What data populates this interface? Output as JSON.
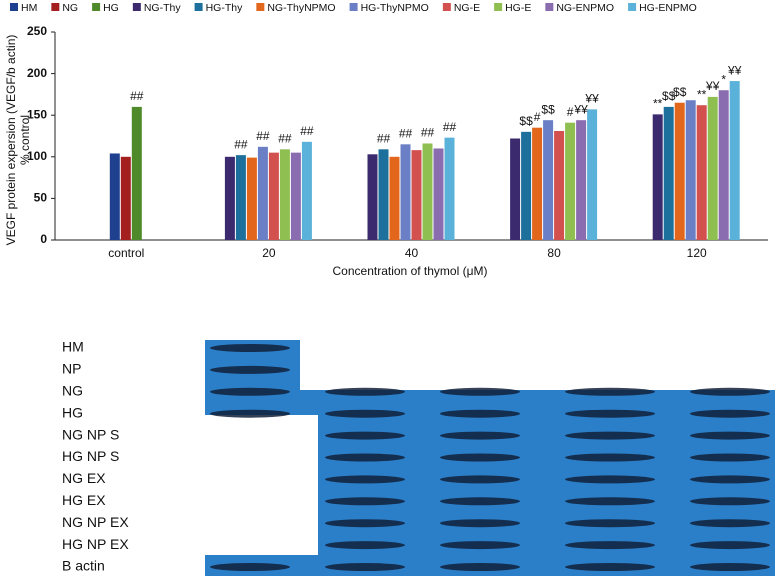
{
  "chart_data": {
    "type": "bar",
    "ylabel": "VEGF protein expersion (VEGF/b actin)",
    "ylabel2": "% control",
    "xlabel": "Concentration of thymol (μM)",
    "categories": [
      "control",
      "20",
      "40",
      "80",
      "120"
    ],
    "series": [
      {
        "name": "HM",
        "color": "#1f3f8f",
        "values": [
          104,
          null,
          null,
          null,
          null
        ]
      },
      {
        "name": "NG",
        "color": "#a3201f",
        "values": [
          100,
          null,
          null,
          null,
          null
        ]
      },
      {
        "name": "HG",
        "color": "#4e8a2a",
        "values": [
          160,
          null,
          null,
          null,
          null
        ]
      },
      {
        "name": "NG-Thy",
        "color": "#3b2b6e",
        "values": [
          null,
          100,
          103,
          122,
          151
        ]
      },
      {
        "name": "HG-Thy",
        "color": "#1d6f9c",
        "values": [
          null,
          102,
          109,
          130,
          160
        ]
      },
      {
        "name": "NG-ThyNPMO",
        "color": "#e2671c",
        "values": [
          null,
          99,
          100,
          135,
          165
        ]
      },
      {
        "name": "HG-ThyNPMO",
        "color": "#6a7fc6",
        "values": [
          null,
          112,
          115,
          144,
          168
        ]
      },
      {
        "name": "NG-E",
        "color": "#d2504e",
        "values": [
          null,
          105,
          108,
          131,
          162
        ]
      },
      {
        "name": "HG-E",
        "color": "#8fbf50",
        "values": [
          null,
          109,
          116,
          141,
          172
        ]
      },
      {
        "name": "NG-ENPMO",
        "color": "#8a6db0",
        "values": [
          null,
          105,
          110,
          144,
          180
        ]
      },
      {
        "name": "HG-ENPMO",
        "color": "#5ab1d9",
        "values": [
          null,
          118,
          123,
          157,
          191
        ]
      }
    ],
    "ylim": [
      0,
      250
    ],
    "yticks": [
      0,
      50,
      100,
      150,
      200,
      250
    ],
    "annotations": [
      {
        "text": "##",
        "category": "control",
        "series": "HG"
      },
      {
        "text": "##",
        "category": "20",
        "series": "HG-Thy"
      },
      {
        "text": "##",
        "category": "20",
        "series": "HG-ThyNPMO"
      },
      {
        "text": "##",
        "category": "20",
        "series": "HG-E"
      },
      {
        "text": "##",
        "category": "20",
        "series": "HG-ENPMO"
      },
      {
        "text": "##",
        "category": "40",
        "series": "HG-Thy"
      },
      {
        "text": "##",
        "category": "40",
        "series": "HG-ThyNPMO"
      },
      {
        "text": "##",
        "category": "40",
        "series": "HG-E"
      },
      {
        "text": "##",
        "category": "40",
        "series": "HG-ENPMO"
      },
      {
        "text": "$$",
        "category": "80",
        "series": "HG-Thy"
      },
      {
        "text": "#",
        "category": "80",
        "series": "NG-ThyNPMO"
      },
      {
        "text": "$$",
        "category": "80",
        "series": "HG-ThyNPMO"
      },
      {
        "text": "#",
        "category": "80",
        "series": "HG-E"
      },
      {
        "text": "¥¥",
        "category": "80",
        "series": "NG-ENPMO"
      },
      {
        "text": "¥¥",
        "category": "80",
        "series": "HG-ENPMO"
      },
      {
        "text": "**",
        "category": "120",
        "series": "NG-Thy"
      },
      {
        "text": "$$",
        "category": "120",
        "series": "HG-Thy"
      },
      {
        "text": "$$",
        "category": "120",
        "series": "NG-ThyNPMO"
      },
      {
        "text": "**",
        "category": "120",
        "series": "NG-E"
      },
      {
        "text": "¥¥",
        "category": "120",
        "series": "HG-E"
      },
      {
        "text": "*",
        "category": "120",
        "series": "NG-ENPMO"
      },
      {
        "text": "¥¥",
        "category": "120",
        "series": "HG-ENPMO"
      }
    ]
  },
  "blot": {
    "labels": [
      "HM",
      "NP",
      "NG",
      "HG",
      "NG NP S",
      "HG NP S",
      "NG EX",
      "HG EX",
      "NG NP EX",
      "HG NP EX",
      "B actin"
    ]
  }
}
